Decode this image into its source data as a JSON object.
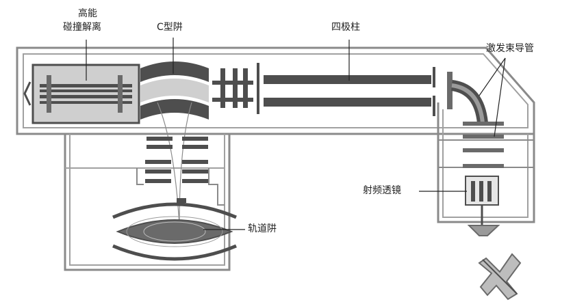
{
  "labels": {
    "hcd_line1": "高能",
    "hcd_line2": "碰撞解离",
    "c_trap": "C型阱",
    "quadrupole": "四极柱",
    "laser_tube": "激发束导管",
    "rf_lens": "射频透镜",
    "orbitrap": "轨道阱"
  },
  "colors": {
    "frame": "#8a8a8a",
    "dark": "#4e4e4e",
    "mid": "#8f8f8f",
    "light": "#cfcfcf"
  }
}
